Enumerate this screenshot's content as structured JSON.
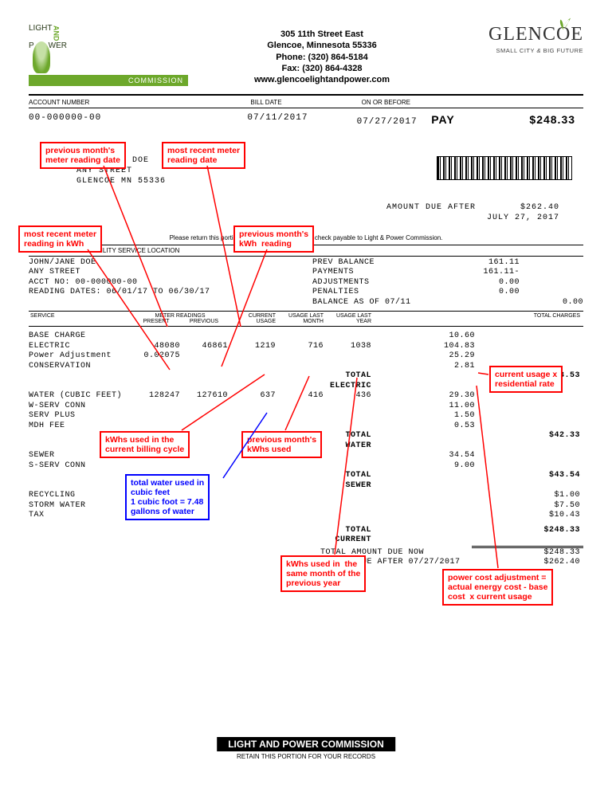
{
  "company": {
    "name_line1": "LIGHT",
    "name_line2": "P",
    "name_line2b": "WER",
    "name_amp": "AND",
    "commission": "COMMISSION",
    "address1": "305 11th Street East",
    "address2": "Glencoe, Minnesota 55336",
    "phone": "Phone: (320) 864-5184",
    "fax": "Fax: (320) 864-4328",
    "website": "www.glencoelightandpower.com"
  },
  "glencoe": {
    "name": "GLENCOE",
    "tagline_left": "SMALL CITY",
    "tagline_amp": "&",
    "tagline_right": "BIG FUTURE"
  },
  "labels": {
    "account_number": "ACCOUNT NUMBER",
    "bill_date": "BILL DATE",
    "on_or_before": "ON OR BEFORE",
    "pay": "PAY",
    "service_location": "UTILITY SERVICE LOCATION",
    "return_note": "Please return this portion with your payment. Make check payable to Light & Power Commission.",
    "service": "SERVICE",
    "meter_readings": "METER READINGS",
    "present": "PRESENT",
    "previous": "PREVIOUS",
    "current_usage": "CURRENT USAGE",
    "usage_last_month": "USAGE LAST MONTH",
    "usage_last_year": "USAGE LAST YEAR",
    "total_charges": "TOTAL CHARGES",
    "amount_due_after_label": "AMOUNT DUE AFTER",
    "footer_title": "LIGHT AND POWER COMMISSION",
    "footer_sub": "RETAIN THIS PORTION FOR YOUR RECORDS"
  },
  "account": {
    "number": "00-000000-00",
    "bill_date": "07/11/2017",
    "due_date": "07/27/2017",
    "amount_due": "$248.33",
    "amount_due_after_date": "JULY 27, 2017",
    "amount_due_after_value": "$262.40"
  },
  "address": {
    "line1": "JOHN/JANE DOE",
    "line2": "ANY STREET",
    "line3": "GLENCOE  MN   55336"
  },
  "service_block": {
    "line1": "JOHN/JANE DOE",
    "line2": "ANY STREET",
    "line3": "ACCT NO:  00-000000-00",
    "line4": "READING DATES:  06/01/17 TO 06/30/17"
  },
  "balance": {
    "prev_balance_label": "PREV BALANCE",
    "prev_balance": "161.11",
    "payments_label": "PAYMENTS",
    "payments": "161.11-",
    "adjustments_label": "ADJUSTMENTS",
    "adjustments": "0.00",
    "penalties_label": "PENALTIES",
    "penalties": "0.00",
    "balance_as_of_label": "BALANCE AS OF 07/11",
    "balance_as_of": "0.00"
  },
  "charges": {
    "base_charge": {
      "svc": "BASE CHARGE",
      "amt": "10.60"
    },
    "electric": {
      "svc": "ELECTRIC",
      "present": "48080",
      "previous": "46861",
      "current": "1219",
      "lastmonth": "716",
      "lastyear": "1038",
      "amt": "104.83"
    },
    "power_adj": {
      "svc": "Power Adjustment",
      "present": "0.02075",
      "amt": "25.29"
    },
    "conservation": {
      "svc": "CONSERVATION",
      "amt": "2.81"
    },
    "total_electric": {
      "label": "TOTAL ELECTRIC",
      "total": "$143.53"
    },
    "water": {
      "svc": "WATER (CUBIC FEET)",
      "present": "128247",
      "previous": "127610",
      "current": "637",
      "lastmonth": "416",
      "lastyear": "436",
      "amt": "29.30"
    },
    "w_serv_conn": {
      "svc": "W-SERV CONN",
      "amt": "11.00"
    },
    "serv_plus": {
      "svc": "SERV PLUS",
      "amt": "1.50"
    },
    "mdh_fee": {
      "svc": "MDH FEE",
      "amt": "0.53"
    },
    "total_water": {
      "label": "TOTAL WATER",
      "total": "$42.33"
    },
    "sewer": {
      "svc": "SEWER",
      "amt": "34.54"
    },
    "s_serv_conn": {
      "svc": "S-SERV CONN",
      "amt": "9.00"
    },
    "total_sewer": {
      "label": "TOTAL SEWER",
      "total": "$43.54"
    },
    "recycling": {
      "svc": "RECYCLING",
      "total": "$1.00"
    },
    "storm_water": {
      "svc": "STORM WATER",
      "total": "$7.50"
    },
    "tax": {
      "svc": "TAX",
      "total": "$10.43"
    },
    "total_current": {
      "label": "TOTAL CURRENT",
      "total": "$248.33"
    },
    "total_amount_due_now": {
      "label": "TOTAL AMOUNT DUE NOW",
      "total": "$248.33"
    },
    "amount_due_after": {
      "label": "AMOUNT DUE AFTER 07/27/2017",
      "total": "$262.40"
    }
  },
  "callouts": {
    "c1": "previous month's\nmeter reading date",
    "c2": "most recent meter\nreading date",
    "c3": "most recent meter\nreading in kWh",
    "c4": "previous month's\nkWh  reading",
    "c5": "kWhs used in the\ncurrent billing cycle",
    "c6": "previous month's\nkWhs used",
    "c7": "total water used in\ncubic feet\n1 cubic foot = 7.48\ngallons of water",
    "c8": "kWhs used in  the\nsame month of the\nprevious year",
    "c9": "current usage x\nresidential rate",
    "c10": "power cost adjustment =\nactual energy cost - base\ncost  x current usage"
  },
  "colors": {
    "red": "#ff0000",
    "blue": "#0000ff",
    "green_brand": "#6da82b",
    "dark_green": "#2a3a1a"
  }
}
